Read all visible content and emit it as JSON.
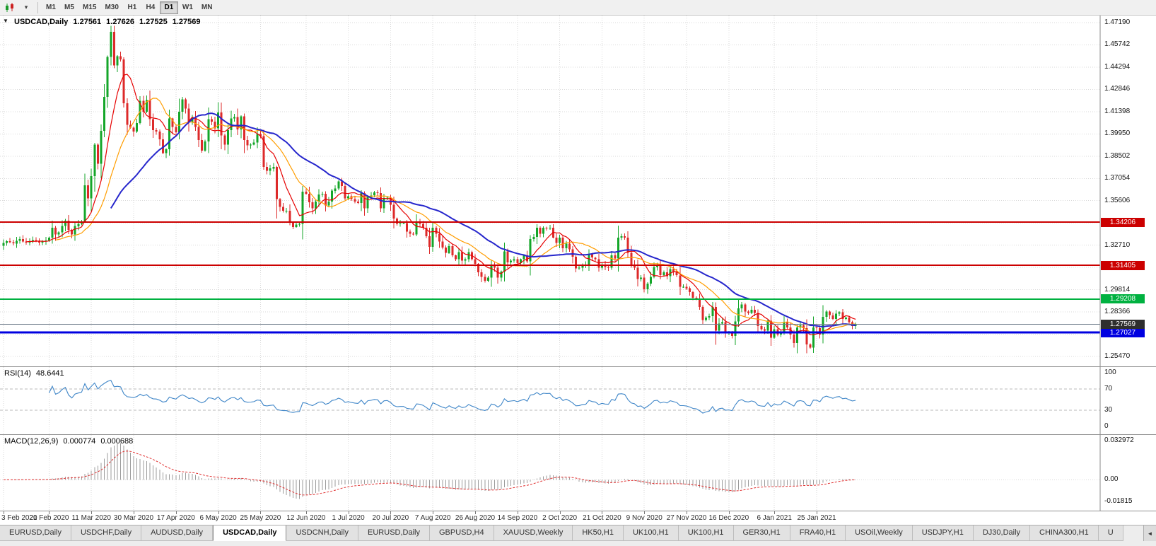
{
  "toolbar": {
    "timeframes": [
      "M1",
      "M5",
      "M15",
      "M30",
      "H1",
      "H4",
      "D1",
      "W1",
      "MN"
    ],
    "active_timeframe": "D1"
  },
  "chart": {
    "symbol_period": "USDCAD,Daily",
    "ohlc": {
      "open": "1.27561",
      "high": "1.27626",
      "low": "1.27525",
      "close": "1.27569"
    },
    "price_axis_labels": [
      "1.47190",
      "1.45742",
      "1.44294",
      "1.42846",
      "1.41398",
      "1.39950",
      "1.38502",
      "1.37054",
      "1.35606",
      "1.34158",
      "1.32710",
      "1.31262",
      "1.29814",
      "1.28366",
      "1.26918",
      "1.25470"
    ],
    "levels": [
      {
        "price": 1.34206,
        "label": "1.34206",
        "color": "#cc0000",
        "width": 2
      },
      {
        "price": 1.31405,
        "label": "1.31405",
        "color": "#cc0000",
        "width": 2
      },
      {
        "price": 1.29208,
        "label": "1.29208",
        "color": "#00b140",
        "width": 2
      },
      {
        "price": 1.27027,
        "label": "1.27027",
        "color": "#0000e0",
        "width": 3
      }
    ],
    "bid": {
      "price": 1.27569,
      "label": "1.27569",
      "line_color": "#6d7a88",
      "tag_color": "#2e2e2e"
    },
    "one_click_arrow": "▼"
  },
  "chart_data": {
    "type": "candlestick",
    "title": "USDCAD,Daily",
    "y_range": [
      1.2547,
      1.4719
    ],
    "candle_colors": {
      "bull": "#14a629",
      "bear": "#dd2a2a"
    },
    "overlays": [
      {
        "name": "ma-fast",
        "period": 8,
        "color": "#e60000",
        "width": 1.2
      },
      {
        "name": "ma-mid",
        "period": 17,
        "color": "#ff9d00",
        "width": 1.2
      },
      {
        "name": "ma-slow",
        "period": 34,
        "color": "#2626cc",
        "width": 2
      }
    ],
    "date_labels": [
      {
        "text": "3 Feb 2020",
        "i": 0
      },
      {
        "text": "21 Feb 2020",
        "i": 14
      },
      {
        "text": "11 Mar 2020",
        "i": 27
      },
      {
        "text": "30 Mar 2020",
        "i": 40
      },
      {
        "text": "17 Apr 2020",
        "i": 53
      },
      {
        "text": "6 May 2020",
        "i": 66
      },
      {
        "text": "25 May 2020",
        "i": 79
      },
      {
        "text": "12 Jun 2020",
        "i": 93
      },
      {
        "text": "1 Jul 2020",
        "i": 106
      },
      {
        "text": "20 Jul 2020",
        "i": 119
      },
      {
        "text": "7 Aug 2020",
        "i": 132
      },
      {
        "text": "26 Aug 2020",
        "i": 145
      },
      {
        "text": "14 Sep 2020",
        "i": 158
      },
      {
        "text": "2 Oct 2020",
        "i": 171
      },
      {
        "text": "21 Oct 2020",
        "i": 184
      },
      {
        "text": "9 Nov 2020",
        "i": 197
      },
      {
        "text": "27 Nov 2020",
        "i": 210
      },
      {
        "text": "16 Dec 2020",
        "i": 223
      },
      {
        "text": "6 Jan 2021",
        "i": 237
      },
      {
        "text": "25 Jan 2021",
        "i": 250
      }
    ],
    "closes": [
      1.3285,
      1.3297,
      1.329,
      1.3282,
      1.33,
      1.331,
      1.3295,
      1.3288,
      1.3296,
      1.3304,
      1.3298,
      1.3288,
      1.3295,
      1.3302,
      1.332,
      1.3385,
      1.334,
      1.3355,
      1.3395,
      1.343,
      1.337,
      1.334,
      1.3395,
      1.341,
      1.3425,
      1.366,
      1.3575,
      1.372,
      1.3925,
      1.38,
      1.4015,
      1.4235,
      1.4495,
      1.466,
      1.444,
      1.45,
      1.448,
      1.4195,
      1.4055,
      1.4035,
      1.401,
      1.4065,
      1.421,
      1.414,
      1.4215,
      1.409,
      1.402,
      1.401,
      1.396,
      1.387,
      1.3895,
      1.4095,
      1.404,
      1.4005,
      1.414,
      1.422,
      1.416,
      1.407,
      1.41,
      1.404,
      1.3955,
      1.3885,
      1.3945,
      1.409,
      1.4075,
      1.403,
      1.4135,
      1.3985,
      1.3925,
      1.402,
      1.4095,
      1.4105,
      1.4025,
      1.411,
      1.3955,
      1.392,
      1.3925,
      1.394,
      1.3995,
      1.398,
      1.378,
      1.3755,
      1.377,
      1.378,
      1.357,
      1.352,
      1.3495,
      1.3495,
      1.342,
      1.339,
      1.3405,
      1.341,
      1.362,
      1.3605,
      1.355,
      1.351,
      1.3555,
      1.36,
      1.3605,
      1.353,
      1.3555,
      1.3625,
      1.364,
      1.3685,
      1.3655,
      1.3575,
      1.359,
      1.357,
      1.3555,
      1.3545,
      1.361,
      1.351,
      1.3585,
      1.3595,
      1.3615,
      1.361,
      1.351,
      1.3575,
      1.358,
      1.3535,
      1.3445,
      1.341,
      1.3415,
      1.3415,
      1.336,
      1.3345,
      1.334,
      1.342,
      1.341,
      1.3385,
      1.333,
      1.326,
      1.3385,
      1.3345,
      1.3295,
      1.3255,
      1.322,
      1.3265,
      1.3205,
      1.318,
      1.3225,
      1.317,
      1.318,
      1.3225,
      1.318,
      1.315,
      1.3095,
      1.3065,
      1.304,
      1.306,
      1.3145,
      1.3125,
      1.306,
      1.31,
      1.323,
      1.316,
      1.317,
      1.318,
      1.3155,
      1.318,
      1.3205,
      1.3165,
      1.331,
      1.3325,
      1.3385,
      1.3345,
      1.3385,
      1.338,
      1.3385,
      1.332,
      1.3285,
      1.332,
      1.325,
      1.328,
      1.3245,
      1.3195,
      1.312,
      1.3125,
      1.314,
      1.3145,
      1.3215,
      1.319,
      1.318,
      1.3125,
      1.3145,
      1.313,
      1.3125,
      1.3205,
      1.3185,
      1.332,
      1.333,
      1.332,
      1.322,
      1.3145,
      1.3125,
      1.305,
      1.306,
      1.2985,
      1.302,
      1.3065,
      1.313,
      1.314,
      1.3075,
      1.3095,
      1.307,
      1.3115,
      1.3095,
      1.3075,
      1.3,
      1.3,
      1.299,
      1.2965,
      1.293,
      1.292,
      1.287,
      1.2785,
      1.28,
      1.281,
      1.287,
      1.2715,
      1.276,
      1.277,
      1.27,
      1.2705,
      1.268,
      1.2775,
      1.286,
      1.2885,
      1.284,
      1.283,
      1.285,
      1.283,
      1.2745,
      1.2725,
      1.2715,
      1.278,
      1.267,
      1.2725,
      1.269,
      1.27,
      1.277,
      1.2735,
      1.269,
      1.2635,
      1.2735,
      1.275,
      1.273,
      1.2625,
      1.2605,
      1.2735,
      1.273,
      1.269,
      1.2805,
      1.284,
      1.2815,
      1.279,
      1.2825,
      1.2835,
      1.279,
      1.28,
      1.277,
      1.2745,
      1.2757
    ]
  },
  "rsi": {
    "name": "RSI(14)",
    "value": "48.6441",
    "period": 14,
    "levels": [
      70,
      30
    ],
    "axis_labels": [
      "100",
      "70",
      "30",
      "0"
    ],
    "color": "#3f86c8"
  },
  "macd": {
    "name": "MACD(12,26,9)",
    "value": "0.000774",
    "signal_value": "0.000688",
    "fast": 12,
    "slow": 26,
    "signal": 9,
    "range": [
      -0.01815,
      0.032972
    ],
    "axis_top": "0.032972",
    "axis_zero": "0.00",
    "axis_bottom": "-0.01815",
    "hist_color": "#9b9b9b",
    "signal_color": "#e03030"
  },
  "tabs": {
    "scroll_left": "◄",
    "items": [
      {
        "label": "EURUSD,Daily"
      },
      {
        "label": "USDCHF,Daily"
      },
      {
        "label": "AUDUSD,Daily"
      },
      {
        "label": "USDCAD,Daily",
        "active": true
      },
      {
        "label": "USDCNH,Daily"
      },
      {
        "label": "EURUSD,Daily"
      },
      {
        "label": "GBPUSD,H4"
      },
      {
        "label": "XAUUSD,Weekly"
      },
      {
        "label": "HK50,H1"
      },
      {
        "label": "UK100,H1"
      },
      {
        "label": "UK100,H1"
      },
      {
        "label": "GER30,H1"
      },
      {
        "label": "FRA40,H1"
      },
      {
        "label": "USOil,Weekly"
      },
      {
        "label": "USDJPY,H1"
      },
      {
        "label": "DJ30,Daily"
      },
      {
        "label": "CHINA300,H1"
      },
      {
        "label": "U"
      }
    ]
  },
  "colors": {
    "grid": "#dadada",
    "panel_border": "#8f8f8f"
  }
}
